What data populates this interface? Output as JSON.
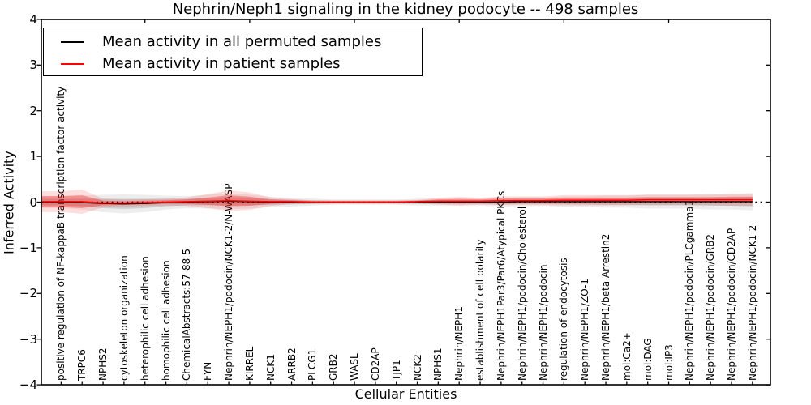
{
  "legend": {
    "position": "upper left"
  },
  "chart_data": {
    "type": "line",
    "title": "Nephrin/Neph1 signaling in the kidney podocyte -- 498 samples",
    "xlabel": "Cellular Entities",
    "ylabel": "Inferred Activity",
    "ylim": [
      -4,
      4
    ],
    "yticks": [
      "4",
      "3",
      "2",
      "1",
      "0",
      "−1",
      "−2",
      "−3",
      "−4"
    ],
    "ytick_values": [
      4,
      3,
      2,
      1,
      0,
      -1,
      -2,
      -3,
      -4
    ],
    "grid": false,
    "zero_line": "dotted",
    "legend_position": "upper left",
    "categories": [
      "positive regulation of NF-kappaB transcription factor activity",
      "TRPC6",
      "NPHS2",
      "cytoskeleton organization",
      "heterophilic cell adhesion",
      "homophilic cell adhesion",
      "ChemicalAbstracts:57-88-5",
      "FYN",
      "Nephrin/NEPH1/podocin/NCK1-2/N-WASP",
      "KIRREL",
      "NCK1",
      "ARRB2",
      "PLCG1",
      "GRB2",
      "WASL",
      "CD2AP",
      "TJP1",
      "NCK2",
      "NPHS1",
      "Nephrin/NEPH1",
      "establishment of cell polarity",
      "Nephrin/NEPH1Par3/Par6/Atypical PKCs",
      "Nephrin/NEPH1/podocin/Cholesterol",
      "Nephrin/NEPH1/podocin",
      "regulation of endocytosis",
      "Nephrin/NEPH1/ZO-1",
      "Nephrin/NEPH1/beta Arrestin2",
      "mol:Ca2+",
      "mol:DAG",
      "mol:IP3",
      "Nephrin/NEPH1/podocin/PLCgamma1",
      "Nephrin/NEPH1/podocin/GRB2",
      "Nephrin/NEPH1/podocin/CD2AP",
      "Nephrin/NEPH1/podocin/NCK1-2"
    ],
    "series": [
      {
        "name": "Mean activity in all permuted samples",
        "color": "#000000",
        "band_color": "#777777",
        "values": [
          0.0,
          -0.01,
          -0.03,
          -0.04,
          -0.03,
          -0.01,
          0.0,
          0.01,
          0.02,
          0.01,
          0.0,
          0.0,
          0.0,
          0.0,
          0.0,
          0.0,
          0.0,
          0.0,
          0.0,
          0.0,
          0.0,
          0.0,
          0.01,
          0.01,
          0.01,
          0.01,
          0.01,
          0.01,
          0.01,
          0.01,
          0.01,
          0.01,
          0.01,
          0.01
        ],
        "band": [
          0.07,
          0.08,
          0.1,
          0.11,
          0.1,
          0.08,
          0.07,
          0.08,
          0.09,
          0.08,
          0.06,
          0.05,
          0.04,
          0.03,
          0.03,
          0.03,
          0.03,
          0.04,
          0.04,
          0.04,
          0.04,
          0.05,
          0.05,
          0.05,
          0.06,
          0.06,
          0.07,
          0.07,
          0.08,
          0.08,
          0.08,
          0.09,
          0.09,
          0.1
        ]
      },
      {
        "name": "Mean activity in patient samples",
        "color": "#ff0000",
        "band_color": "#ff0000",
        "values": [
          0.01,
          0.01,
          -0.02,
          -0.02,
          -0.01,
          0.0,
          0.01,
          0.02,
          0.03,
          0.02,
          0.01,
          0.01,
          0.0,
          0.0,
          0.0,
          0.0,
          0.0,
          0.01,
          0.02,
          0.02,
          0.02,
          0.03,
          0.03,
          0.03,
          0.04,
          0.04,
          0.04,
          0.04,
          0.05,
          0.05,
          0.05,
          0.05,
          0.05,
          0.05
        ],
        "band": [
          0.12,
          0.14,
          0.05,
          0.04,
          0.04,
          0.04,
          0.05,
          0.08,
          0.12,
          0.1,
          0.05,
          0.03,
          0.02,
          0.02,
          0.02,
          0.02,
          0.02,
          0.02,
          0.04,
          0.05,
          0.04,
          0.05,
          0.05,
          0.05,
          0.06,
          0.06,
          0.06,
          0.06,
          0.06,
          0.06,
          0.06,
          0.06,
          0.07,
          0.07
        ]
      }
    ]
  }
}
